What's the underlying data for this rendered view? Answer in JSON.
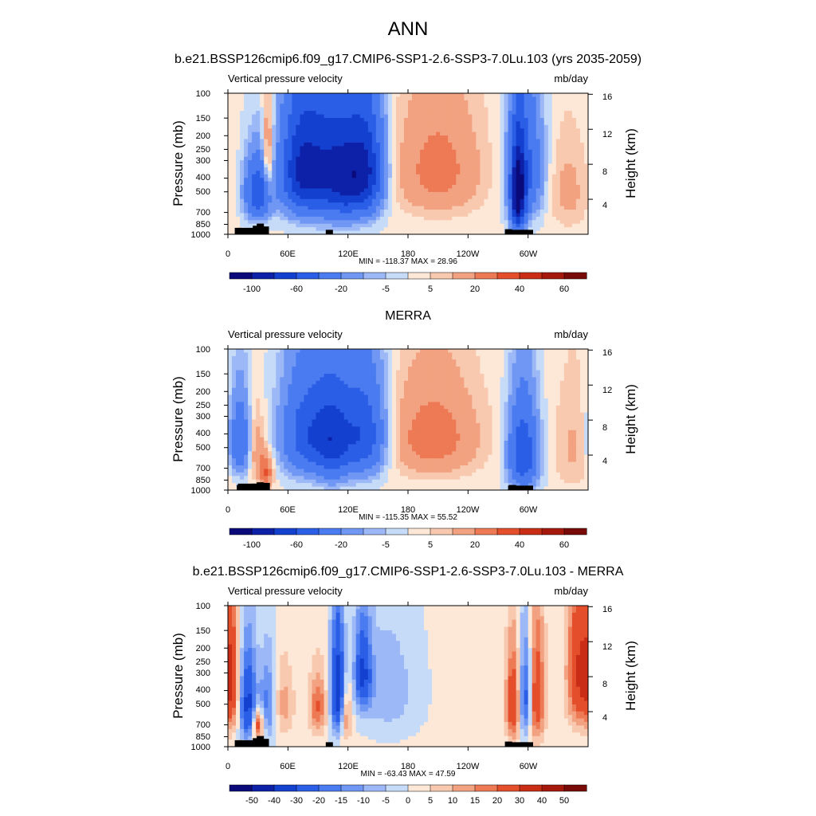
{
  "page": {
    "title": "ANN"
  },
  "colors": {
    "standard_levels": [
      "#0a0a7a",
      "#0d20a8",
      "#1440d0",
      "#2a5ee6",
      "#4a7bf0",
      "#6f97f3",
      "#9cb8f6",
      "#c6dbf8",
      "#fde8d8",
      "#f8c9ae",
      "#f3a281",
      "#ed7a55",
      "#e44e2a",
      "#c92d16",
      "#a5180c",
      "#780b07"
    ],
    "diff_levels": [
      "#0a0a7a",
      "#0d20a8",
      "#1440d0",
      "#2a5ee6",
      "#4a7bf0",
      "#6f97f3",
      "#9cb8f6",
      "#c6dbf8",
      "#fde8d8",
      "#f8c9ae",
      "#f3a281",
      "#ed7a55",
      "#e44e2a",
      "#c92d16",
      "#a5180c",
      "#780b07"
    ],
    "topography": "#000000"
  },
  "chart_data": [
    {
      "type": "heatmap",
      "title": "b.e21.BSSP126cmip6.f09_g17.CMIP6-SSP1-2.6-SSP3-7.0Lu.103 (yrs 2035-2059)",
      "left_label": "Vertical pressure velocity",
      "right_label": "mb/day",
      "ylabel": "Pressure (mb)",
      "ylabel_right": "Height (km)",
      "x_ticks": [
        "0",
        "60E",
        "120E",
        "180",
        "120W",
        "60W"
      ],
      "y_ticks": [
        "100",
        "150",
        "200",
        "250",
        "300",
        "400",
        "500",
        "700",
        "850",
        "1000"
      ],
      "y_right_ticks": [
        "16",
        "12",
        "8",
        "4"
      ],
      "stats": "MIN = -118.37  MAX =  28.96",
      "colorbar_labels": [
        "-100",
        "-60",
        "-20",
        "-5",
        "5",
        "20",
        "40",
        "60"
      ],
      "scale": "standard",
      "min": -118.37,
      "max": 28.96,
      "features": [
        {
          "lon": 30,
          "p": 500,
          "w": -60,
          "sx": 9,
          "sp": 170
        },
        {
          "lon": 40,
          "p": 300,
          "w": 30,
          "sx": 4,
          "sp": 160
        },
        {
          "lon": 70,
          "p": 350,
          "w": -60,
          "sx": 14,
          "sp": 220
        },
        {
          "lon": 95,
          "p": 350,
          "w": -65,
          "sx": 18,
          "sp": 250
        },
        {
          "lon": 120,
          "p": 400,
          "w": -60,
          "sx": 14,
          "sp": 230
        },
        {
          "lon": 140,
          "p": 350,
          "w": -65,
          "sx": 12,
          "sp": 220
        },
        {
          "lon": 210,
          "p": 350,
          "w": 24,
          "sx": 30,
          "sp": 230
        },
        {
          "lon": 290,
          "p": 550,
          "w": -100,
          "sx": 5,
          "sp": 260
        },
        {
          "lon": 297,
          "p": 350,
          "w": -45,
          "sx": 12,
          "sp": 250
        },
        {
          "lon": 340,
          "p": 500,
          "w": 12,
          "sx": 14,
          "sp": 250
        }
      ],
      "topography": [
        [
          10,
          900
        ],
        [
          28,
          870
        ],
        [
          32,
          840
        ],
        [
          37,
          880
        ],
        [
          101,
          930
        ],
        [
          280,
          920
        ],
        [
          296,
          930
        ]
      ]
    },
    {
      "type": "heatmap",
      "title": "MERRA",
      "left_label": "Vertical pressure velocity",
      "right_label": "mb/day",
      "ylabel": "Pressure (mb)",
      "ylabel_right": "Height (km)",
      "x_ticks": [
        "0",
        "60E",
        "120E",
        "180",
        "120W",
        "60W"
      ],
      "y_ticks": [
        "100",
        "150",
        "200",
        "250",
        "300",
        "400",
        "500",
        "700",
        "850",
        "1000"
      ],
      "y_right_ticks": [
        "16",
        "12",
        "8",
        "4"
      ],
      "stats": "MIN = -115.35  MAX =  55.52",
      "colorbar_labels": [
        "-100",
        "-60",
        "-20",
        "-5",
        "5",
        "20",
        "40",
        "60"
      ],
      "scale": "standard",
      "min": -115.35,
      "max": 55.52,
      "features": [
        {
          "lon": 12,
          "p": 450,
          "w": -40,
          "sx": 8,
          "sp": 200
        },
        {
          "lon": 28,
          "p": 500,
          "w": 18,
          "sx": 6,
          "sp": 200
        },
        {
          "lon": 38,
          "p": 750,
          "w": 30,
          "sx": 5,
          "sp": 150
        },
        {
          "lon": 80,
          "p": 400,
          "w": -55,
          "sx": 18,
          "sp": 230
        },
        {
          "lon": 105,
          "p": 450,
          "w": -50,
          "sx": 12,
          "sp": 250
        },
        {
          "lon": 135,
          "p": 400,
          "w": -60,
          "sx": 16,
          "sp": 230
        },
        {
          "lon": 205,
          "p": 420,
          "w": 26,
          "sx": 32,
          "sp": 230
        },
        {
          "lon": 295,
          "p": 550,
          "w": -60,
          "sx": 10,
          "sp": 270
        },
        {
          "lon": 345,
          "p": 500,
          "w": 10,
          "sx": 14,
          "sp": 300
        }
      ],
      "topography": [
        [
          12,
          920
        ],
        [
          27,
          900
        ],
        [
          32,
          880
        ],
        [
          38,
          890
        ],
        [
          284,
          920
        ]
      ]
    },
    {
      "type": "heatmap",
      "title": "b.e21.BSSP126cmip6.f09_g17.CMIP6-SSP1-2.6-SSP3-7.0Lu.103 - MERRA",
      "left_label": "Vertical pressure velocity",
      "right_label": "mb/day",
      "ylabel": "Pressure (mb)",
      "ylabel_right": "Height (km)",
      "x_ticks": [
        "0",
        "60E",
        "120E",
        "180",
        "120W",
        "60W"
      ],
      "y_ticks": [
        "100",
        "150",
        "200",
        "250",
        "300",
        "400",
        "500",
        "700",
        "850",
        "1000"
      ],
      "y_right_ticks": [
        "16",
        "12",
        "8",
        "4"
      ],
      "stats": "MIN = -63.43  MAX =  47.59",
      "colorbar_labels": [
        "-50",
        "-40",
        "-30",
        "-20",
        "-15",
        "-10",
        "-5",
        "0",
        "5",
        "10",
        "15",
        "20",
        "30",
        "40",
        "50"
      ],
      "scale": "diff",
      "min": -63.43,
      "max": 47.59,
      "features": [
        {
          "lon": 3,
          "p": 350,
          "w": 26,
          "sx": 6,
          "sp": 260
        },
        {
          "lon": 20,
          "p": 500,
          "w": -35,
          "sx": 6,
          "sp": 250
        },
        {
          "lon": 30,
          "p": 700,
          "w": 30,
          "sx": 4,
          "sp": 120
        },
        {
          "lon": 40,
          "p": 500,
          "w": -20,
          "sx": 6,
          "sp": 230
        },
        {
          "lon": 55,
          "p": 500,
          "w": 12,
          "sx": 8,
          "sp": 200
        },
        {
          "lon": 90,
          "p": 520,
          "w": 20,
          "sx": 6,
          "sp": 180
        },
        {
          "lon": 110,
          "p": 400,
          "w": -40,
          "sx": 5,
          "sp": 250
        },
        {
          "lon": 118,
          "p": 600,
          "w": 18,
          "sx": 4,
          "sp": 200
        },
        {
          "lon": 135,
          "p": 300,
          "w": -30,
          "sx": 6,
          "sp": 150
        },
        {
          "lon": 160,
          "p": 400,
          "w": -10,
          "sx": 20,
          "sp": 250
        },
        {
          "lon": 285,
          "p": 500,
          "w": 30,
          "sx": 5,
          "sp": 250
        },
        {
          "lon": 298,
          "p": 450,
          "w": -30,
          "sx": 5,
          "sp": 250
        },
        {
          "lon": 308,
          "p": 450,
          "w": 30,
          "sx": 6,
          "sp": 280
        },
        {
          "lon": 350,
          "p": 300,
          "w": 28,
          "sx": 8,
          "sp": 250
        }
      ],
      "topography": [
        [
          10,
          900
        ],
        [
          28,
          870
        ],
        [
          32,
          840
        ],
        [
          37,
          880
        ],
        [
          101,
          930
        ],
        [
          280,
          920
        ],
        [
          296,
          930
        ]
      ]
    }
  ]
}
